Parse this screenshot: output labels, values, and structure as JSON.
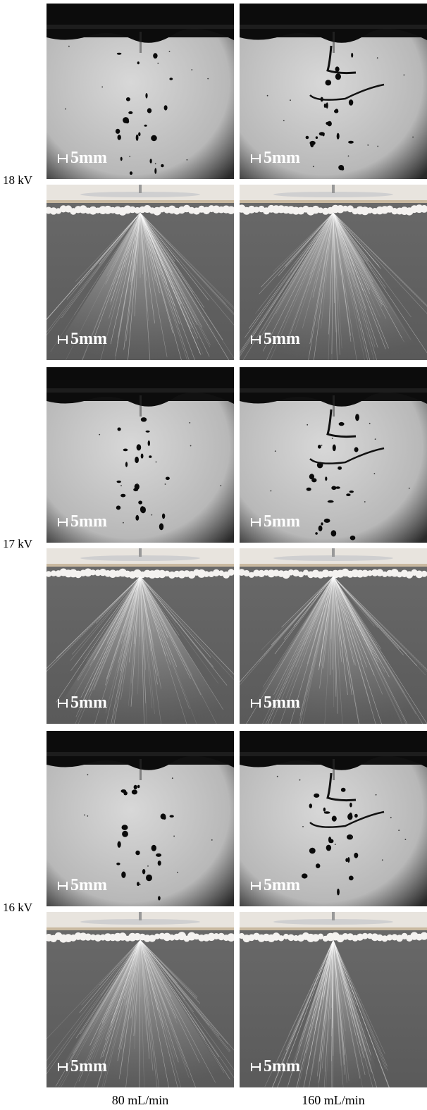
{
  "rows": [
    {
      "voltage_label": "18 kV"
    },
    {
      "voltage_label": "17 kV"
    },
    {
      "voltage_label": "16 kV"
    }
  ],
  "columns": [
    {
      "flow_label": "80 mL/min"
    },
    {
      "flow_label": "160 mL/min"
    }
  ],
  "scale_bar_label": "5mm"
}
